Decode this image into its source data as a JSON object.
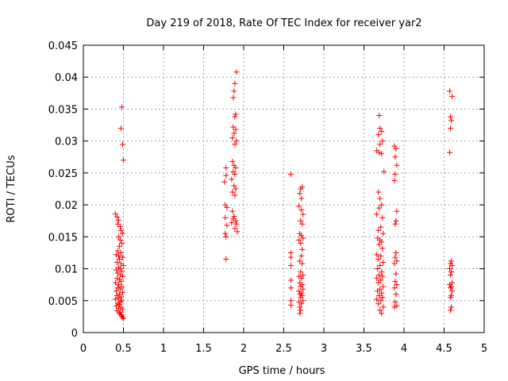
{
  "chart_data": {
    "type": "scatter",
    "title": "Day 219 of 2018, Rate Of TEC Index for receiver yar2",
    "xlabel": "GPS time / hours",
    "ylabel": "ROTI / TECUs",
    "xlim": [
      0,
      5
    ],
    "ylim": [
      0,
      0.045
    ],
    "x_ticks": [
      "0",
      "0.5",
      "1",
      "1.5",
      "2",
      "2.5",
      "3",
      "3.5",
      "4",
      "4.5",
      "5"
    ],
    "y_ticks": [
      "0",
      "0.005",
      "0.01",
      "0.015",
      "0.02",
      "0.025",
      "0.03",
      "0.035",
      "0.04",
      "0.045"
    ],
    "grid": true,
    "marker": "plus",
    "marker_color": "#ff0000",
    "series": [
      {
        "name": "ROTI",
        "points": [
          [
            0.48,
            0.0353
          ],
          [
            0.47,
            0.032
          ],
          [
            0.49,
            0.0295
          ],
          [
            0.5,
            0.027
          ],
          [
            0.4,
            0.0186
          ],
          [
            0.42,
            0.0181
          ],
          [
            0.44,
            0.0176
          ],
          [
            0.43,
            0.017
          ],
          [
            0.46,
            0.0166
          ],
          [
            0.47,
            0.016
          ],
          [
            0.49,
            0.0155
          ],
          [
            0.44,
            0.015
          ],
          [
            0.46,
            0.0145
          ],
          [
            0.48,
            0.014
          ],
          [
            0.45,
            0.0135
          ],
          [
            0.43,
            0.0128
          ],
          [
            0.47,
            0.0125
          ],
          [
            0.41,
            0.0122
          ],
          [
            0.44,
            0.012
          ],
          [
            0.49,
            0.0118
          ],
          [
            0.45,
            0.0115
          ],
          [
            0.42,
            0.011
          ],
          [
            0.47,
            0.0108
          ],
          [
            0.5,
            0.0105
          ],
          [
            0.44,
            0.0102
          ],
          [
            0.46,
            0.01
          ],
          [
            0.41,
            0.0098
          ],
          [
            0.48,
            0.0096
          ],
          [
            0.43,
            0.0093
          ],
          [
            0.46,
            0.009
          ],
          [
            0.49,
            0.0088
          ],
          [
            0.42,
            0.0085
          ],
          [
            0.45,
            0.0083
          ],
          [
            0.47,
            0.008
          ],
          [
            0.4,
            0.0078
          ],
          [
            0.44,
            0.0075
          ],
          [
            0.48,
            0.0072
          ],
          [
            0.43,
            0.007
          ],
          [
            0.46,
            0.0068
          ],
          [
            0.41,
            0.0065
          ],
          [
            0.49,
            0.0063
          ],
          [
            0.45,
            0.006
          ],
          [
            0.42,
            0.0058
          ],
          [
            0.47,
            0.0056
          ],
          [
            0.44,
            0.0054
          ],
          [
            0.4,
            0.0052
          ],
          [
            0.48,
            0.005
          ],
          [
            0.46,
            0.0048
          ],
          [
            0.43,
            0.0046
          ],
          [
            0.45,
            0.0044
          ],
          [
            0.41,
            0.0042
          ],
          [
            0.47,
            0.004
          ],
          [
            0.44,
            0.0038
          ],
          [
            0.49,
            0.0036
          ],
          [
            0.42,
            0.0034
          ],
          [
            0.46,
            0.0032
          ],
          [
            0.45,
            0.003
          ],
          [
            0.47,
            0.0028
          ],
          [
            0.48,
            0.0026
          ],
          [
            0.49,
            0.0024
          ],
          [
            0.5,
            0.0022
          ],
          [
            1.91,
            0.0408
          ],
          [
            1.89,
            0.039
          ],
          [
            1.88,
            0.0378
          ],
          [
            1.87,
            0.0368
          ],
          [
            1.9,
            0.0342
          ],
          [
            1.89,
            0.0338
          ],
          [
            1.87,
            0.0322
          ],
          [
            1.9,
            0.0318
          ],
          [
            1.88,
            0.0312
          ],
          [
            1.86,
            0.0305
          ],
          [
            1.91,
            0.03
          ],
          [
            1.89,
            0.0295
          ],
          [
            1.78,
            0.0258
          ],
          [
            1.86,
            0.0268
          ],
          [
            1.88,
            0.0262
          ],
          [
            1.9,
            0.0258
          ],
          [
            1.87,
            0.0252
          ],
          [
            1.89,
            0.0248
          ],
          [
            1.78,
            0.0246
          ],
          [
            1.85,
            0.024
          ],
          [
            1.76,
            0.0236
          ],
          [
            1.88,
            0.023
          ],
          [
            1.9,
            0.0225
          ],
          [
            1.86,
            0.022
          ],
          [
            1.89,
            0.0215
          ],
          [
            1.77,
            0.02
          ],
          [
            1.79,
            0.0196
          ],
          [
            1.86,
            0.019
          ],
          [
            1.88,
            0.0182
          ],
          [
            1.77,
            0.018
          ],
          [
            1.87,
            0.0178
          ],
          [
            1.9,
            0.0175
          ],
          [
            1.85,
            0.0172
          ],
          [
            1.91,
            0.017
          ],
          [
            1.79,
            0.0168
          ],
          [
            1.89,
            0.0163
          ],
          [
            1.92,
            0.0158
          ],
          [
            1.77,
            0.0155
          ],
          [
            1.78,
            0.015
          ],
          [
            1.78,
            0.0115
          ],
          [
            2.59,
            0.0248
          ],
          [
            2.71,
            0.0225
          ],
          [
            2.73,
            0.0228
          ],
          [
            2.7,
            0.0218
          ],
          [
            2.72,
            0.021
          ],
          [
            2.69,
            0.0198
          ],
          [
            2.72,
            0.0192
          ],
          [
            2.74,
            0.0185
          ],
          [
            2.71,
            0.0175
          ],
          [
            2.73,
            0.017
          ],
          [
            2.7,
            0.0155
          ],
          [
            2.72,
            0.0152
          ],
          [
            2.74,
            0.0148
          ],
          [
            2.69,
            0.0145
          ],
          [
            2.71,
            0.014
          ],
          [
            2.73,
            0.013
          ],
          [
            2.59,
            0.0125
          ],
          [
            2.72,
            0.012
          ],
          [
            2.59,
            0.0118
          ],
          [
            2.7,
            0.0112
          ],
          [
            2.73,
            0.0108
          ],
          [
            2.59,
            0.0105
          ],
          [
            2.71,
            0.0095
          ],
          [
            2.74,
            0.009
          ],
          [
            2.69,
            0.0088
          ],
          [
            2.72,
            0.0085
          ],
          [
            2.59,
            0.0082
          ],
          [
            2.7,
            0.0078
          ],
          [
            2.73,
            0.0075
          ],
          [
            2.71,
            0.0072
          ],
          [
            2.59,
            0.007
          ],
          [
            2.74,
            0.0068
          ],
          [
            2.69,
            0.0065
          ],
          [
            2.72,
            0.0062
          ],
          [
            2.7,
            0.006
          ],
          [
            2.73,
            0.0058
          ],
          [
            2.71,
            0.0055
          ],
          [
            2.59,
            0.005
          ],
          [
            2.74,
            0.005
          ],
          [
            2.69,
            0.0048
          ],
          [
            2.72,
            0.0045
          ],
          [
            2.59,
            0.0043
          ],
          [
            2.7,
            0.004
          ],
          [
            2.71,
            0.0035
          ],
          [
            2.7,
            0.003
          ],
          [
            3.69,
            0.034
          ],
          [
            3.7,
            0.032
          ],
          [
            3.72,
            0.0315
          ],
          [
            3.68,
            0.031
          ],
          [
            3.73,
            0.03
          ],
          [
            3.7,
            0.0295
          ],
          [
            3.88,
            0.0292
          ],
          [
            3.9,
            0.0288
          ],
          [
            3.66,
            0.0285
          ],
          [
            3.69,
            0.0282
          ],
          [
            3.72,
            0.028
          ],
          [
            3.89,
            0.0275
          ],
          [
            3.91,
            0.0262
          ],
          [
            3.75,
            0.0252
          ],
          [
            3.89,
            0.0248
          ],
          [
            3.88,
            0.0238
          ],
          [
            3.68,
            0.022
          ],
          [
            3.7,
            0.021
          ],
          [
            3.72,
            0.02
          ],
          [
            3.69,
            0.0195
          ],
          [
            3.91,
            0.019
          ],
          [
            3.66,
            0.0185
          ],
          [
            3.73,
            0.018
          ],
          [
            3.9,
            0.0175
          ],
          [
            3.89,
            0.017
          ],
          [
            3.71,
            0.0165
          ],
          [
            3.68,
            0.016
          ],
          [
            3.74,
            0.0155
          ],
          [
            3.67,
            0.0148
          ],
          [
            3.7,
            0.0145
          ],
          [
            3.72,
            0.0142
          ],
          [
            3.69,
            0.0138
          ],
          [
            3.73,
            0.0132
          ],
          [
            3.9,
            0.0125
          ],
          [
            3.66,
            0.0122
          ],
          [
            3.71,
            0.012
          ],
          [
            3.89,
            0.0118
          ],
          [
            3.68,
            0.0115
          ],
          [
            3.91,
            0.0112
          ],
          [
            3.74,
            0.011
          ],
          [
            3.88,
            0.0108
          ],
          [
            3.7,
            0.0105
          ],
          [
            3.67,
            0.01
          ],
          [
            3.72,
            0.0095
          ],
          [
            3.9,
            0.0092
          ],
          [
            3.69,
            0.009
          ],
          [
            3.73,
            0.0088
          ],
          [
            3.66,
            0.0085
          ],
          [
            3.71,
            0.0082
          ],
          [
            3.89,
            0.008
          ],
          [
            3.68,
            0.0078
          ],
          [
            3.91,
            0.0075
          ],
          [
            3.74,
            0.0072
          ],
          [
            3.88,
            0.007
          ],
          [
            3.7,
            0.0068
          ],
          [
            3.67,
            0.0065
          ],
          [
            3.72,
            0.0062
          ],
          [
            3.9,
            0.006
          ],
          [
            3.69,
            0.0058
          ],
          [
            3.73,
            0.0055
          ],
          [
            3.66,
            0.0052
          ],
          [
            3.71,
            0.005
          ],
          [
            3.89,
            0.0048
          ],
          [
            3.68,
            0.0045
          ],
          [
            3.91,
            0.0042
          ],
          [
            3.74,
            0.004
          ],
          [
            3.88,
            0.004
          ],
          [
            3.7,
            0.0035
          ],
          [
            3.72,
            0.003
          ],
          [
            4.57,
            0.0378
          ],
          [
            4.6,
            0.037
          ],
          [
            4.58,
            0.0338
          ],
          [
            4.59,
            0.0332
          ],
          [
            4.58,
            0.032
          ],
          [
            4.57,
            0.0282
          ],
          [
            4.59,
            0.0112
          ],
          [
            4.58,
            0.0108
          ],
          [
            4.6,
            0.0105
          ],
          [
            4.57,
            0.01
          ],
          [
            4.59,
            0.0095
          ],
          [
            4.58,
            0.009
          ],
          [
            4.6,
            0.0078
          ],
          [
            4.57,
            0.0075
          ],
          [
            4.59,
            0.0072
          ],
          [
            4.58,
            0.007
          ],
          [
            4.6,
            0.0065
          ],
          [
            4.59,
            0.0058
          ],
          [
            4.58,
            0.0055
          ],
          [
            4.59,
            0.004
          ],
          [
            4.58,
            0.0035
          ]
        ]
      }
    ]
  }
}
